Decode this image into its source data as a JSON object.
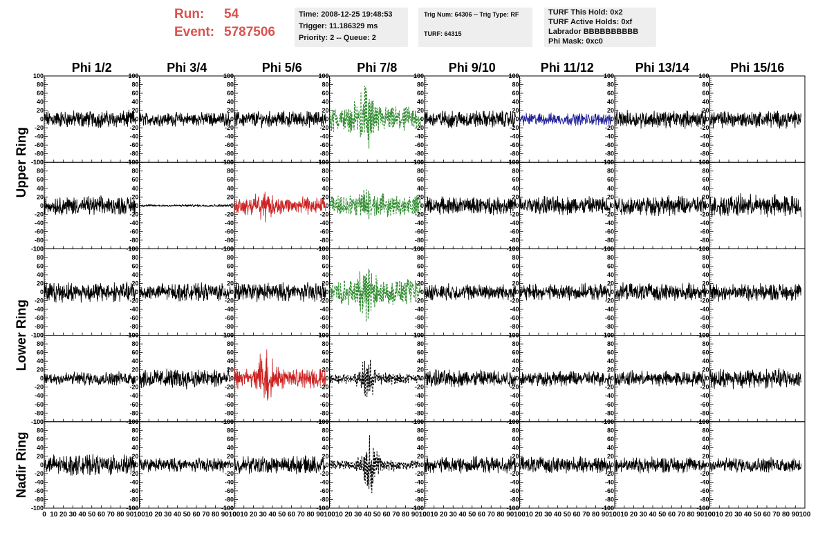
{
  "header": {
    "run_label": "Run:",
    "run_value": "54",
    "event_label": "Event:",
    "event_value": "5787506"
  },
  "info_panels": {
    "time": "Time: 2008-12-25 19:48:53",
    "trigger": "Trigger: 11.186329 ms",
    "priority": "Priority: 2 -- Queue: 2",
    "trig_num": "Trig Num: 64306 -- Trig Type: RF",
    "turf": "TURF: 64315",
    "turf_this_hold": "TURF This Hold: 0x2",
    "turf_active_holds": "TURF Active Holds: 0xf",
    "labrador": "Labrador BBBBBBBBBB",
    "phi_mask": "Phi Mask: 0xc0"
  },
  "chart_data": {
    "type": "line",
    "column_titles": [
      "Phi 1/2",
      "Phi 3/4",
      "Phi 5/6",
      "Phi 7/8",
      "Phi 9/10",
      "Phi 11/12",
      "Phi 13/14",
      "Phi 15/16"
    ],
    "ring_labels": [
      "Upper Ring",
      "Lower Ring",
      "Nadir Ring"
    ],
    "ylim": [
      -100,
      100
    ],
    "xlim": [
      0,
      100
    ],
    "y_ticks": [
      "100",
      "80",
      "60",
      "40",
      "20",
      "0",
      "-20",
      "-40",
      "-60",
      "-80",
      "-100"
    ],
    "x_ticks": [
      "0",
      "10",
      "20",
      "30",
      "40",
      "50",
      "60",
      "70",
      "80",
      "90",
      "100"
    ],
    "waveform_x_range": [
      0,
      96
    ],
    "colors": {
      "black": "#000000",
      "red": "#cc2222",
      "green": "#2e8b2e",
      "blue": "#22229a"
    },
    "panel_rows": [
      [
        {
          "amp": 14,
          "style": "black"
        },
        {
          "amp": 11,
          "style": "black"
        },
        {
          "amp": 13,
          "style": "black"
        },
        {
          "amp": 20,
          "style": "green-dashed",
          "pulse": 60,
          "pulse_center": 38
        },
        {
          "amp": 14,
          "style": "black"
        },
        {
          "amp": 10,
          "style": "blue"
        },
        {
          "amp": 14,
          "style": "black"
        },
        {
          "amp": 14,
          "style": "black"
        }
      ],
      [
        {
          "amp": 15,
          "style": "black"
        },
        {
          "amp": 2,
          "style": "black"
        },
        {
          "amp": 14,
          "style": "red",
          "pulse": 28,
          "pulse_center": 32
        },
        {
          "amp": 16,
          "style": "green-dashed",
          "pulse": 30,
          "pulse_center": 38
        },
        {
          "amp": 14,
          "style": "black"
        },
        {
          "amp": 15,
          "style": "black"
        },
        {
          "amp": 16,
          "style": "black"
        },
        {
          "amp": 18,
          "style": "black"
        }
      ],
      [
        {
          "amp": 16,
          "style": "black"
        },
        {
          "amp": 14,
          "style": "black"
        },
        {
          "amp": 15,
          "style": "black"
        },
        {
          "amp": 20,
          "style": "green-dashed",
          "pulse": 50,
          "pulse_center": 38
        },
        {
          "amp": 13,
          "style": "black"
        },
        {
          "amp": 13,
          "style": "black"
        },
        {
          "amp": 14,
          "style": "black"
        },
        {
          "amp": 14,
          "style": "black"
        }
      ],
      [
        {
          "amp": 11,
          "style": "black"
        },
        {
          "amp": 16,
          "style": "black"
        },
        {
          "amp": 16,
          "style": "red",
          "pulse": 45,
          "pulse_center": 32
        },
        {
          "amp": 8,
          "style": "black-dashed",
          "pulse": 38,
          "pulse_center": 40
        },
        {
          "amp": 14,
          "style": "black"
        },
        {
          "amp": 12,
          "style": "black"
        },
        {
          "amp": 12,
          "style": "black"
        },
        {
          "amp": 16,
          "style": "black"
        }
      ],
      [
        {
          "amp": 16,
          "style": "black"
        },
        {
          "amp": 11,
          "style": "black"
        },
        {
          "amp": 14,
          "style": "black"
        },
        {
          "amp": 8,
          "style": "black-dashed",
          "pulse": 48,
          "pulse_center": 42
        },
        {
          "amp": 13,
          "style": "black"
        },
        {
          "amp": 13,
          "style": "black"
        },
        {
          "amp": 13,
          "style": "black"
        },
        {
          "amp": 12,
          "style": "black"
        }
      ]
    ]
  }
}
